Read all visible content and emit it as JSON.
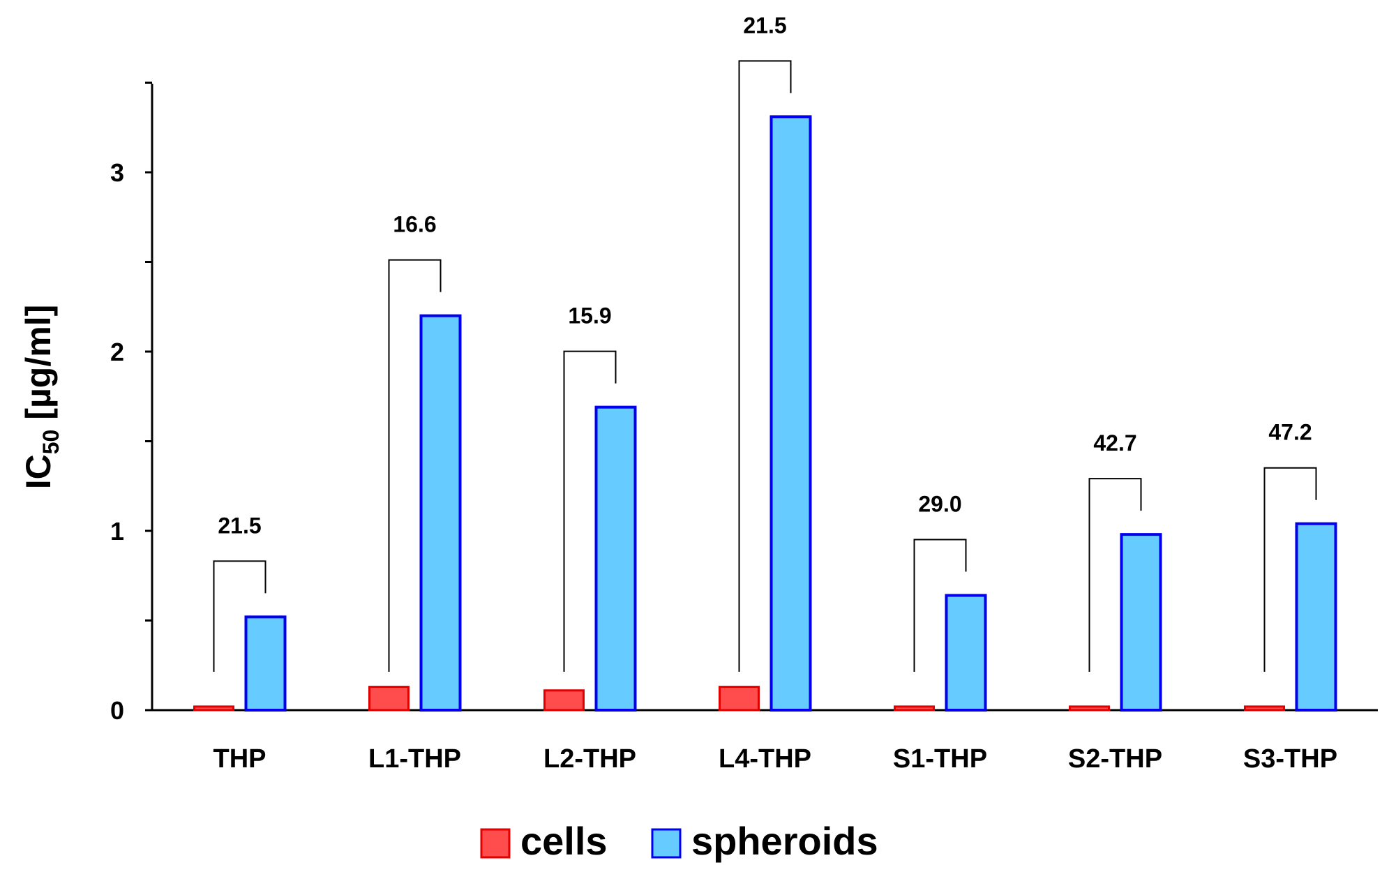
{
  "chart_data": {
    "type": "bar",
    "title": "",
    "xlabel": "",
    "ylabel": {
      "main": "IC",
      "sub": "50",
      "unit": "[µg/ml]"
    },
    "ylim": [
      0,
      3.5
    ],
    "yticks": [
      0,
      1,
      2,
      3
    ],
    "grid": false,
    "legend_position": "bottom",
    "categories": [
      "THP",
      "L1-THP",
      "L2-THP",
      "L4-THP",
      "S1-THP",
      "S2-THP",
      "S3-THP"
    ],
    "series": [
      {
        "name": "cells",
        "fill": "#ff4c4c",
        "stroke": "#e00000",
        "values": [
          0.02,
          0.13,
          0.11,
          0.13,
          0.02,
          0.02,
          0.02
        ]
      },
      {
        "name": "spheroids",
        "fill": "#66ccff",
        "stroke": "#0000ee",
        "values": [
          0.52,
          2.2,
          1.69,
          3.31,
          0.64,
          0.98,
          1.04
        ]
      }
    ],
    "annotations": [
      {
        "category": "THP",
        "text": "21.5"
      },
      {
        "category": "L1-THP",
        "text": "16.6"
      },
      {
        "category": "L2-THP",
        "text": "15.9"
      },
      {
        "category": "L4-THP",
        "text": "21.5"
      },
      {
        "category": "S1-THP",
        "text": "29.0"
      },
      {
        "category": "S2-THP",
        "text": "42.7"
      },
      {
        "category": "S3-THP",
        "text": "47.2"
      }
    ]
  }
}
